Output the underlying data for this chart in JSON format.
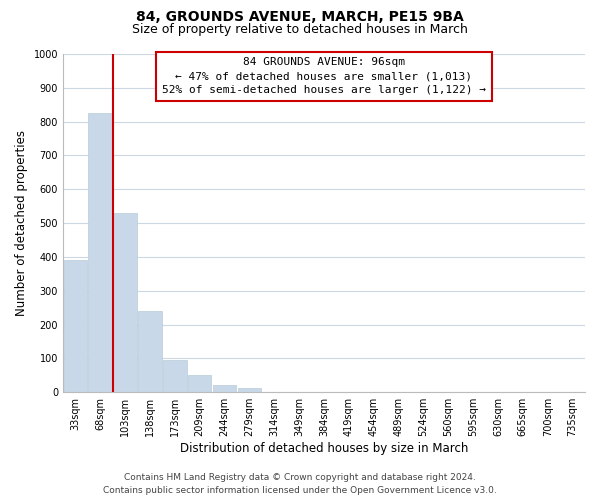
{
  "title": "84, GROUNDS AVENUE, MARCH, PE15 9BA",
  "subtitle": "Size of property relative to detached houses in March",
  "xlabel": "Distribution of detached houses by size in March",
  "ylabel": "Number of detached properties",
  "bar_labels": [
    "33sqm",
    "68sqm",
    "103sqm",
    "138sqm",
    "173sqm",
    "209sqm",
    "244sqm",
    "279sqm",
    "314sqm",
    "349sqm",
    "384sqm",
    "419sqm",
    "454sqm",
    "489sqm",
    "524sqm",
    "560sqm",
    "595sqm",
    "630sqm",
    "665sqm",
    "700sqm",
    "735sqm"
  ],
  "bar_values": [
    390,
    827,
    530,
    241,
    95,
    52,
    20,
    13,
    0,
    0,
    0,
    0,
    0,
    0,
    0,
    0,
    0,
    0,
    0,
    0,
    0
  ],
  "bar_color": "#c8d8e8",
  "bar_edge_color": "#b8ccd8",
  "ref_line_x": 1.5,
  "ref_line_color": "#cc0000",
  "annotation_line1": "84 GROUNDS AVENUE: 96sqm",
  "annotation_line2": "← 47% of detached houses are smaller (1,013)",
  "annotation_line3": "52% of semi-detached houses are larger (1,122) →",
  "annotation_box_facecolor": "#ffffff",
  "annotation_box_edgecolor": "#cc0000",
  "ylim": [
    0,
    1000
  ],
  "yticks": [
    0,
    100,
    200,
    300,
    400,
    500,
    600,
    700,
    800,
    900,
    1000
  ],
  "footer_line1": "Contains HM Land Registry data © Crown copyright and database right 2024.",
  "footer_line2": "Contains public sector information licensed under the Open Government Licence v3.0.",
  "bg_color": "#ffffff",
  "grid_color": "#ccd8e4",
  "title_fontsize": 10,
  "subtitle_fontsize": 9,
  "axis_label_fontsize": 8.5,
  "tick_fontsize": 7,
  "annotation_fontsize": 8,
  "footer_fontsize": 6.5
}
